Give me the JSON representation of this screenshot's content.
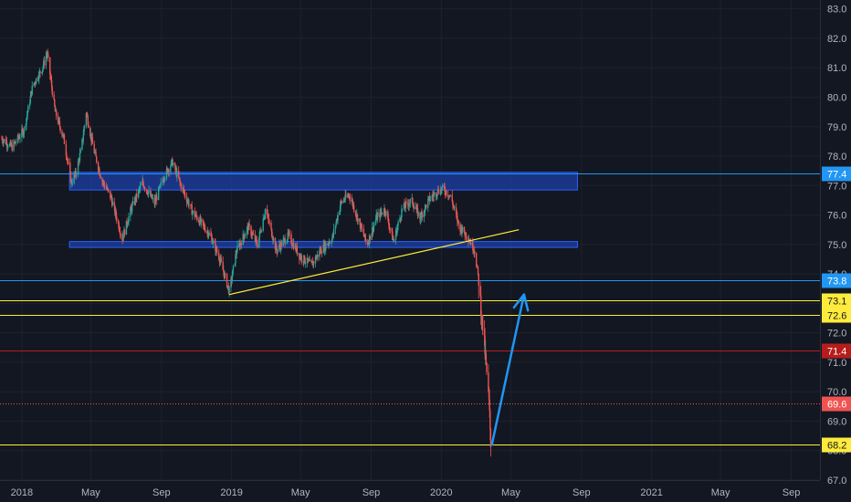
{
  "chart_data": {
    "type": "candlestick",
    "title": "",
    "xlabel": "",
    "ylabel": "",
    "ylim": [
      67.0,
      83.3
    ],
    "y_ticks": [
      67.0,
      68.0,
      69.0,
      70.0,
      71.0,
      72.0,
      73.0,
      74.0,
      75.0,
      76.0,
      77.0,
      78.0,
      79.0,
      80.0,
      81.0,
      82.0,
      83.0
    ],
    "x_ticks": [
      {
        "label": "2018",
        "date": "2018-01-01"
      },
      {
        "label": "May",
        "date": "2018-05-01"
      },
      {
        "label": "Sep",
        "date": "2018-09-01"
      },
      {
        "label": "2019",
        "date": "2019-01-01"
      },
      {
        "label": "May",
        "date": "2019-05-01"
      },
      {
        "label": "Sep",
        "date": "2019-09-01"
      },
      {
        "label": "2020",
        "date": "2020-01-01"
      },
      {
        "label": "May",
        "date": "2020-05-01"
      },
      {
        "label": "Sep",
        "date": "2020-09-01"
      },
      {
        "label": "2021",
        "date": "2021-01-01"
      },
      {
        "label": "May",
        "date": "2021-05-01"
      },
      {
        "label": "Sep",
        "date": "2021-09-01"
      }
    ],
    "x_range": [
      "2017-11-24",
      "2021-10-21"
    ],
    "grid": true,
    "colors": {
      "background": "#131722",
      "up": "#26a69a",
      "down": "#ef5350",
      "zone": "#1e3fa6",
      "support": "#ffeb3b",
      "resistance": "#2196f3",
      "red_level": "#b71c1c",
      "arrow": "#2196f3"
    },
    "series": [
      {
        "type": "close",
        "points": [
          [
            "2017-11-27",
            78.6
          ],
          [
            "2017-12-15",
            78.3
          ],
          [
            "2018-01-05",
            78.9
          ],
          [
            "2018-01-20",
            80.4
          ],
          [
            "2018-02-06",
            81.0
          ],
          [
            "2018-02-14",
            81.5
          ],
          [
            "2018-02-28",
            79.5
          ],
          [
            "2018-03-15",
            78.6
          ],
          [
            "2018-03-28",
            77.1
          ],
          [
            "2018-04-05",
            77.4
          ],
          [
            "2018-04-15",
            78.3
          ],
          [
            "2018-04-23",
            79.5
          ],
          [
            "2018-05-05",
            78.3
          ],
          [
            "2018-05-20",
            77.2
          ],
          [
            "2018-06-05",
            76.6
          ],
          [
            "2018-06-25",
            75.2
          ],
          [
            "2018-07-10",
            76.2
          ],
          [
            "2018-07-30",
            77.1
          ],
          [
            "2018-08-20",
            76.4
          ],
          [
            "2018-09-05",
            77.3
          ],
          [
            "2018-09-20",
            77.8
          ],
          [
            "2018-10-05",
            77.0
          ],
          [
            "2018-10-25",
            76.1
          ],
          [
            "2018-11-10",
            75.7
          ],
          [
            "2018-11-25",
            75.3
          ],
          [
            "2018-12-10",
            74.6
          ],
          [
            "2018-12-28",
            73.4
          ],
          [
            "2019-01-10",
            74.8
          ],
          [
            "2019-01-30",
            75.6
          ],
          [
            "2019-02-15",
            75.0
          ],
          [
            "2019-03-01",
            76.2
          ],
          [
            "2019-03-20",
            74.8
          ],
          [
            "2019-04-10",
            75.3
          ],
          [
            "2019-04-30",
            74.6
          ],
          [
            "2019-05-20",
            74.3
          ],
          [
            "2019-06-05",
            74.8
          ],
          [
            "2019-06-25",
            75.2
          ],
          [
            "2019-07-10",
            76.4
          ],
          [
            "2019-07-25",
            76.7
          ],
          [
            "2019-08-10",
            75.8
          ],
          [
            "2019-08-25",
            75.0
          ],
          [
            "2019-09-10",
            75.9
          ],
          [
            "2019-09-25",
            76.2
          ],
          [
            "2019-10-10",
            75.1
          ],
          [
            "2019-10-25",
            76.2
          ],
          [
            "2019-11-10",
            76.5
          ],
          [
            "2019-11-25",
            75.9
          ],
          [
            "2019-12-10",
            76.5
          ],
          [
            "2019-12-25",
            76.8
          ],
          [
            "2020-01-05",
            76.9
          ],
          [
            "2020-01-18",
            76.6
          ],
          [
            "2020-02-01",
            75.6
          ],
          [
            "2020-02-15",
            75.3
          ],
          [
            "2020-02-28",
            74.8
          ],
          [
            "2020-03-06",
            73.8
          ],
          [
            "2020-03-12",
            72.4
          ],
          [
            "2020-03-16",
            71.6
          ],
          [
            "2020-03-20",
            70.6
          ],
          [
            "2020-03-24",
            69.6
          ],
          [
            "2020-03-27",
            68.3
          ]
        ]
      }
    ],
    "annotations": {
      "horizontal_levels": [
        {
          "price": 77.4,
          "label": "77.4",
          "style": "blue"
        },
        {
          "price": 73.8,
          "label": "73.8",
          "style": "blue"
        },
        {
          "price": 73.1,
          "label": "73.1",
          "style": "yellow"
        },
        {
          "price": 72.6,
          "label": "72.6",
          "style": "yellow"
        },
        {
          "price": 71.4,
          "label": "71.4",
          "style": "red"
        },
        {
          "price": 69.6,
          "label": "69.6",
          "style": "current"
        },
        {
          "price": 68.2,
          "label": "68.2",
          "style": "yellow"
        }
      ],
      "zones": [
        {
          "from": "2018-03-25",
          "to": "2020-08-25",
          "low": 76.85,
          "high": 77.45
        },
        {
          "from": "2018-03-25",
          "to": "2020-08-25",
          "low": 74.9,
          "high": 75.1
        }
      ],
      "trendline": {
        "start": [
          "2018-12-28",
          73.3
        ],
        "end": [
          "2020-05-15",
          75.5
        ]
      },
      "arrow": {
        "start": [
          "2020-03-29",
          68.2
        ],
        "end": [
          "2020-05-24",
          73.3
        ]
      }
    }
  }
}
